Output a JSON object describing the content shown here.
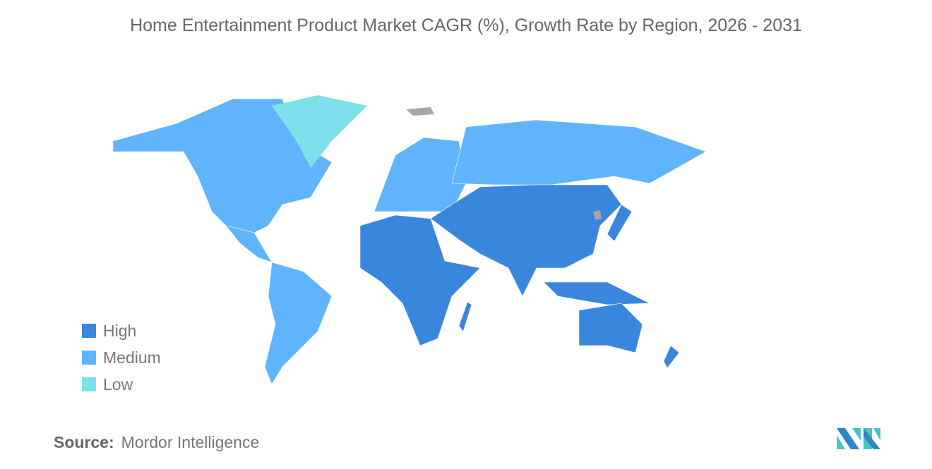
{
  "title": "Home Entertainment Product Market CAGR (%), Growth Rate by Region, 2026 - 2031",
  "legend": [
    {
      "label": "High",
      "color": "#3a86dd"
    },
    {
      "label": "Medium",
      "color": "#60b4fb"
    },
    {
      "label": "Low",
      "color": "#7ee0ec"
    }
  ],
  "no_data_color": "#a6a6a6",
  "regions": {
    "high": [
      "Africa",
      "Middle East",
      "Asia",
      "Australia",
      "New Zealand",
      "Japan",
      "Southeast Asia"
    ],
    "medium": [
      "North America",
      "South America",
      "Europe",
      "Russia"
    ],
    "low": [
      "Greenland"
    ]
  },
  "source": {
    "label": "Source:",
    "value": "Mordor Intelligence"
  },
  "logo_text": "Mordor Intelligence"
}
